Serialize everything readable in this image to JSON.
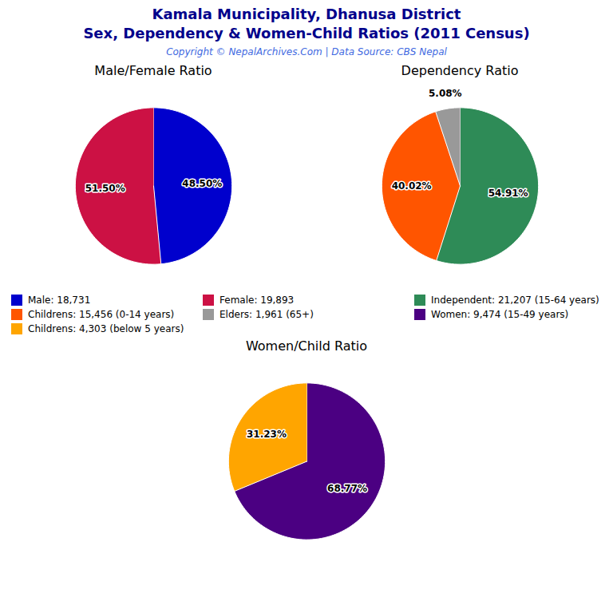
{
  "title": "Kamala Municipality, Dhanusa District",
  "subtitle": "Sex, Dependency & Women-Child Ratios (2011 Census)",
  "caption": "Copyright © NepalArchives.Com | Data Source: CBS Nepal",
  "chart_data": [
    {
      "type": "pie",
      "title": "Male/Female Ratio",
      "categories": [
        "Male: 18,731",
        "Female: 19,893"
      ],
      "values": [
        48.5,
        51.5
      ],
      "value_labels": [
        "48.50%",
        "51.50%"
      ],
      "colors": [
        "#0000CD",
        "#CC1144"
      ],
      "data_labels": true
    },
    {
      "type": "pie",
      "title": "Dependency Ratio",
      "categories": [
        "Independent: 21,207 (15-64 years)",
        "Childrens: 15,456 (0-14 years)",
        "Elders: 1,961 (65+)"
      ],
      "values": [
        54.91,
        40.02,
        5.08
      ],
      "value_labels": [
        "54.91%",
        "40.02%",
        "5.08%"
      ],
      "colors": [
        "#2E8B57",
        "#FF5500",
        "#999999"
      ],
      "data_labels": true
    },
    {
      "type": "pie",
      "title": "Women/Child Ratio",
      "categories": [
        "Women: 9,474 (15-49 years)",
        "Childrens: 4,303 (below 5 years)"
      ],
      "values": [
        68.77,
        31.23
      ],
      "value_labels": [
        "68.77%",
        "31.23%"
      ],
      "colors": [
        "#4B0082",
        "#FFA500"
      ],
      "data_labels": true
    }
  ]
}
